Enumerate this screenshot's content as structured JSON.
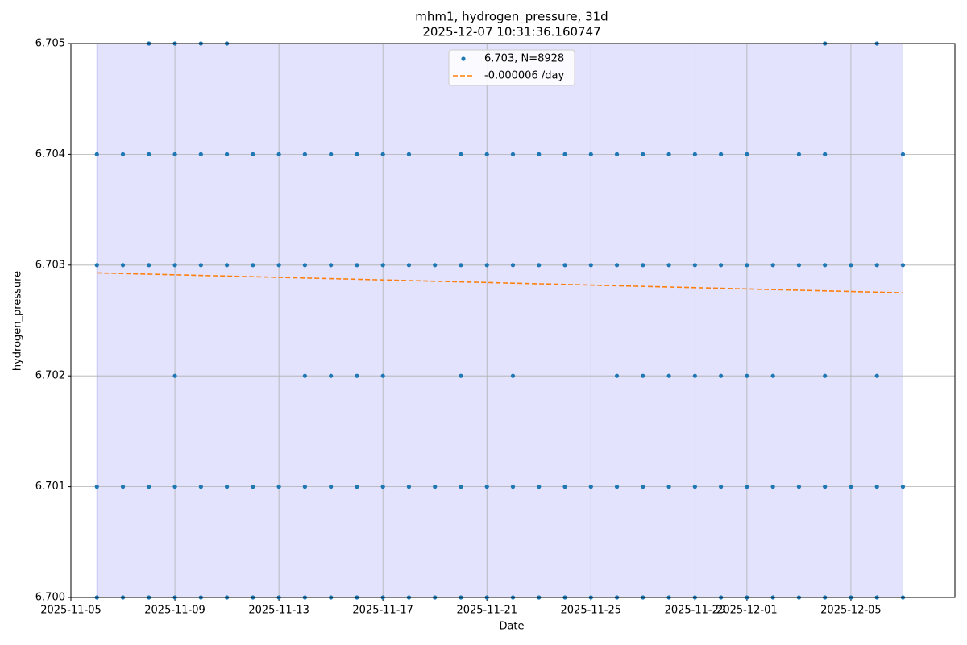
{
  "chart_data": {
    "type": "scatter",
    "title": "mhm1, hydrogen_pressure, 31d",
    "subtitle": "2025-12-07 10:31:36.160747",
    "x_label": "Date",
    "y_label": "hydrogen_pressure",
    "xlim": [
      "2025-11-05",
      "2025-12-09"
    ],
    "xticks": [
      "2025-11-05",
      "2025-11-09",
      "2025-11-13",
      "2025-11-17",
      "2025-11-21",
      "2025-11-25",
      "2025-11-29",
      "2025-12-01",
      "2025-12-05"
    ],
    "ylim": [
      6.7,
      6.705
    ],
    "yticks": [
      {
        "value": 6.7,
        "label": "6.700"
      },
      {
        "value": 6.701,
        "label": "6.701"
      },
      {
        "value": 6.702,
        "label": "6.702"
      },
      {
        "value": 6.703,
        "label": "6.703"
      },
      {
        "value": 6.704,
        "label": "6.704"
      },
      {
        "value": 6.705,
        "label": "6.705"
      }
    ],
    "grid": true,
    "span": [
      "2025-11-06",
      "2025-12-07"
    ],
    "span_color": "#e3e3fd",
    "legend": "upper center",
    "series": [
      {
        "name": "6.703, N=8928",
        "color": "#1f77b4",
        "type": "scatter",
        "x": [
          "2025-11-08",
          "2025-11-09",
          "2025-11-10",
          "2025-11-11",
          "2025-12-04",
          "2025-12-06",
          "2025-11-06",
          "2025-11-07",
          "2025-11-08",
          "2025-11-09",
          "2025-11-10",
          "2025-11-11",
          "2025-11-12",
          "2025-11-13",
          "2025-11-14",
          "2025-11-15",
          "2025-11-16",
          "2025-11-17",
          "2025-11-18",
          "2025-11-20",
          "2025-11-21",
          "2025-11-22",
          "2025-11-23",
          "2025-11-24",
          "2025-11-25",
          "2025-11-26",
          "2025-11-27",
          "2025-11-28",
          "2025-11-29",
          "2025-11-30",
          "2025-12-01",
          "2025-12-03",
          "2025-12-04",
          "2025-12-07",
          "2025-11-06",
          "2025-11-07",
          "2025-11-08",
          "2025-11-09",
          "2025-11-10",
          "2025-11-11",
          "2025-11-12",
          "2025-11-13",
          "2025-11-14",
          "2025-11-15",
          "2025-11-16",
          "2025-11-17",
          "2025-11-18",
          "2025-11-19",
          "2025-11-20",
          "2025-11-21",
          "2025-11-22",
          "2025-11-23",
          "2025-11-24",
          "2025-11-25",
          "2025-11-26",
          "2025-11-27",
          "2025-11-28",
          "2025-11-29",
          "2025-11-30",
          "2025-12-01",
          "2025-12-02",
          "2025-12-03",
          "2025-12-04",
          "2025-12-05",
          "2025-12-06",
          "2025-12-07",
          "2025-11-09",
          "2025-11-14",
          "2025-11-15",
          "2025-11-16",
          "2025-11-17",
          "2025-11-20",
          "2025-11-22",
          "2025-11-26",
          "2025-11-27",
          "2025-11-28",
          "2025-11-29",
          "2025-11-30",
          "2025-12-01",
          "2025-12-02",
          "2025-12-04",
          "2025-12-06",
          "2025-11-06",
          "2025-11-07",
          "2025-11-08",
          "2025-11-09",
          "2025-11-10",
          "2025-11-11",
          "2025-11-12",
          "2025-11-13",
          "2025-11-14",
          "2025-11-15",
          "2025-11-16",
          "2025-11-17",
          "2025-11-18",
          "2025-11-19",
          "2025-11-20",
          "2025-11-21",
          "2025-11-22",
          "2025-11-23",
          "2025-11-24",
          "2025-11-25",
          "2025-11-26",
          "2025-11-27",
          "2025-11-28",
          "2025-11-29",
          "2025-11-30",
          "2025-12-01",
          "2025-12-02",
          "2025-12-03",
          "2025-12-04",
          "2025-12-05",
          "2025-12-06",
          "2025-12-07",
          "2025-11-06",
          "2025-11-07",
          "2025-11-08",
          "2025-11-09",
          "2025-11-10",
          "2025-11-11",
          "2025-11-12",
          "2025-11-13",
          "2025-11-14",
          "2025-11-15",
          "2025-11-16",
          "2025-11-17",
          "2025-11-18",
          "2025-11-19",
          "2025-11-20",
          "2025-11-21",
          "2025-11-22",
          "2025-11-23",
          "2025-11-24",
          "2025-11-25",
          "2025-11-26",
          "2025-11-27",
          "2025-11-28",
          "2025-11-29",
          "2025-11-30",
          "2025-12-01",
          "2025-12-02",
          "2025-12-03",
          "2025-12-04",
          "2025-12-05",
          "2025-12-06",
          "2025-12-07"
        ],
        "values": [
          6.705,
          6.705,
          6.705,
          6.705,
          6.705,
          6.705,
          6.704,
          6.704,
          6.704,
          6.704,
          6.704,
          6.704,
          6.704,
          6.704,
          6.704,
          6.704,
          6.704,
          6.704,
          6.704,
          6.704,
          6.704,
          6.704,
          6.704,
          6.704,
          6.704,
          6.704,
          6.704,
          6.704,
          6.704,
          6.704,
          6.704,
          6.704,
          6.704,
          6.704,
          6.703,
          6.703,
          6.703,
          6.703,
          6.703,
          6.703,
          6.703,
          6.703,
          6.703,
          6.703,
          6.703,
          6.703,
          6.703,
          6.703,
          6.703,
          6.703,
          6.703,
          6.703,
          6.703,
          6.703,
          6.703,
          6.703,
          6.703,
          6.703,
          6.703,
          6.703,
          6.703,
          6.703,
          6.703,
          6.703,
          6.703,
          6.703,
          6.702,
          6.702,
          6.702,
          6.702,
          6.702,
          6.702,
          6.702,
          6.702,
          6.702,
          6.702,
          6.702,
          6.702,
          6.702,
          6.702,
          6.702,
          6.702,
          6.701,
          6.701,
          6.701,
          6.701,
          6.701,
          6.701,
          6.701,
          6.701,
          6.701,
          6.701,
          6.701,
          6.701,
          6.701,
          6.701,
          6.701,
          6.701,
          6.701,
          6.701,
          6.701,
          6.701,
          6.701,
          6.701,
          6.701,
          6.701,
          6.701,
          6.701,
          6.701,
          6.701,
          6.701,
          6.701,
          6.701,
          6.701,
          6.7,
          6.7,
          6.7,
          6.7,
          6.7,
          6.7,
          6.7,
          6.7,
          6.7,
          6.7,
          6.7,
          6.7,
          6.7,
          6.7,
          6.7,
          6.7,
          6.7,
          6.7,
          6.7,
          6.7,
          6.7,
          6.7,
          6.7,
          6.7,
          6.7,
          6.7,
          6.7,
          6.7,
          6.7,
          6.7,
          6.7,
          6.7
        ]
      },
      {
        "name": "-0.000006 /day",
        "color": "#ff7f0e",
        "type": "line",
        "style": "dashed",
        "x": [
          "2025-11-06",
          "2025-12-07"
        ],
        "values": [
          6.70293,
          6.70275
        ]
      }
    ]
  }
}
